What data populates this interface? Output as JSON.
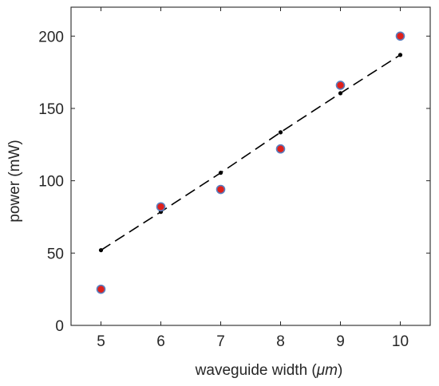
{
  "chart_data": {
    "type": "scatter",
    "xlabel": "waveguide width (",
    "xlabel_unit": "μm",
    "xlabel_close": ")",
    "ylabel": "power (mW)",
    "xlim": [
      4.5,
      10.5
    ],
    "ylim": [
      0,
      220
    ],
    "xticks": [
      5,
      6,
      7,
      8,
      9,
      10
    ],
    "yticks": [
      0,
      50,
      100,
      150,
      200
    ],
    "grid": false,
    "series": [
      {
        "kind": "measured",
        "marker": "circle",
        "color": "#e0201b",
        "edge_color": "#5a7fc0",
        "x": [
          5,
          6,
          7,
          8,
          9,
          10
        ],
        "y": [
          25,
          82,
          94,
          122,
          166,
          200
        ]
      },
      {
        "kind": "fit",
        "marker": "dot",
        "line_style": "dashed",
        "color": "#000000",
        "x": [
          5,
          6,
          7,
          8,
          9,
          10
        ],
        "y": [
          52,
          78.5,
          105.5,
          133.5,
          160.5,
          187
        ]
      }
    ]
  }
}
